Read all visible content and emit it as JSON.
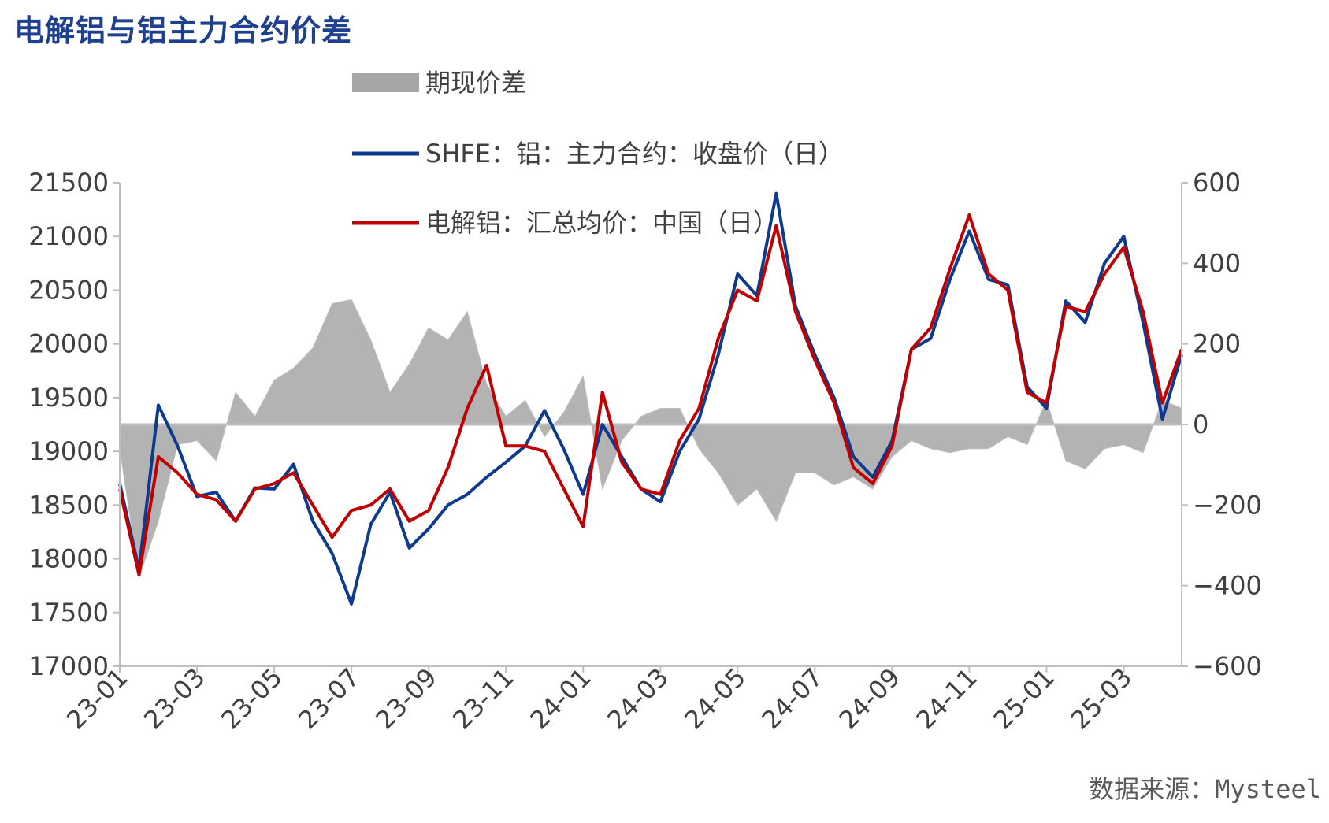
{
  "title": "电解铝与铝主力合约价差",
  "source": "数据来源：Mysteel",
  "chart_data": {
    "type": "line",
    "legend": [
      {
        "name": "期现价差",
        "kind": "area",
        "color": "#a6a6a6"
      },
      {
        "name": "SHFE：铝：主力合约：收盘价（日）",
        "kind": "line",
        "color": "#0d3a8c"
      },
      {
        "name": "电解铝：汇总均价：中国（日）",
        "kind": "line",
        "color": "#c00000"
      }
    ],
    "x_tick_labels": [
      "23-01",
      "23-03",
      "23-05",
      "23-07",
      "23-09",
      "23-11",
      "24-01",
      "24-03",
      "24-05",
      "24-07",
      "24-09",
      "24-11",
      "25-01",
      "25-03"
    ],
    "x_range": [
      "23-01",
      "25-04"
    ],
    "y_left": {
      "ylim": [
        17000,
        21500
      ],
      "ticks": [
        17000,
        17500,
        18000,
        18500,
        19000,
        19500,
        20000,
        20500,
        21000,
        21500
      ]
    },
    "y_right": {
      "ylim": [
        -600,
        600
      ],
      "ticks": [
        -600,
        -400,
        -200,
        0,
        200,
        400,
        600
      ]
    },
    "x": [
      "23-01",
      "23-01b",
      "23-02",
      "23-02b",
      "23-03",
      "23-03b",
      "23-04",
      "23-04b",
      "23-05",
      "23-05b",
      "23-06",
      "23-06b",
      "23-07",
      "23-07b",
      "23-08",
      "23-08b",
      "23-09",
      "23-09b",
      "23-10",
      "23-10b",
      "23-11",
      "23-11b",
      "23-12",
      "23-12b",
      "24-01",
      "24-01b",
      "24-02",
      "24-02b",
      "24-03",
      "24-03b",
      "24-04",
      "24-04b",
      "24-05",
      "24-05b",
      "24-06",
      "24-06b",
      "24-07",
      "24-07b",
      "24-08",
      "24-08b",
      "24-09",
      "24-09b",
      "24-10",
      "24-10b",
      "24-11",
      "24-11b",
      "24-12",
      "24-12b",
      "25-01",
      "25-01b",
      "25-02",
      "25-02b",
      "25-03",
      "25-03b",
      "25-04",
      "25-04b"
    ],
    "series": [
      {
        "name": "SHFE：铝：主力合约：收盘价（日）",
        "axis": "left",
        "values": [
          18700,
          17900,
          19430,
          19050,
          18580,
          18620,
          18350,
          18660,
          18650,
          18880,
          18350,
          18050,
          17580,
          18320,
          18620,
          18100,
          18280,
          18500,
          18600,
          18760,
          18900,
          19050,
          19380,
          19020,
          18600,
          19250,
          18950,
          18650,
          18530,
          19000,
          19300,
          19900,
          20650,
          20450,
          21400,
          20350,
          19900,
          19500,
          18950,
          18760,
          19100,
          19950,
          20050,
          20600,
          21050,
          20600,
          20550,
          19600,
          19400,
          20400,
          20200,
          20750,
          21000,
          20200,
          19300,
          19900
        ]
      },
      {
        "name": "电解铝：汇总均价：中国（日）",
        "axis": "left",
        "values": [
          18650,
          17850,
          18950,
          18800,
          18600,
          18550,
          18350,
          18650,
          18700,
          18800,
          18500,
          18200,
          18450,
          18500,
          18650,
          18350,
          18450,
          18850,
          19400,
          19800,
          19050,
          19050,
          19000,
          18650,
          18300,
          19550,
          18900,
          18650,
          18600,
          19100,
          19400,
          20050,
          20500,
          20400,
          21100,
          20300,
          19850,
          19450,
          18850,
          18700,
          19050,
          19950,
          20150,
          20700,
          21200,
          20650,
          20500,
          19550,
          19450,
          20350,
          20300,
          20650,
          20900,
          20300,
          19450,
          19950
        ]
      },
      {
        "name": "期现价差",
        "axis": "right",
        "values": [
          -60,
          -380,
          -240,
          -50,
          -40,
          -90,
          80,
          20,
          110,
          140,
          190,
          300,
          310,
          210,
          80,
          150,
          240,
          210,
          280,
          100,
          20,
          60,
          -30,
          30,
          120,
          -160,
          -40,
          20,
          40,
          40,
          -60,
          -120,
          -200,
          -160,
          -240,
          -120,
          -120,
          -150,
          -130,
          -160,
          -80,
          -40,
          -60,
          -70,
          -60,
          -60,
          -30,
          -50,
          60,
          -90,
          -110,
          -60,
          -50,
          -70,
          60,
          40
        ]
      }
    ]
  }
}
